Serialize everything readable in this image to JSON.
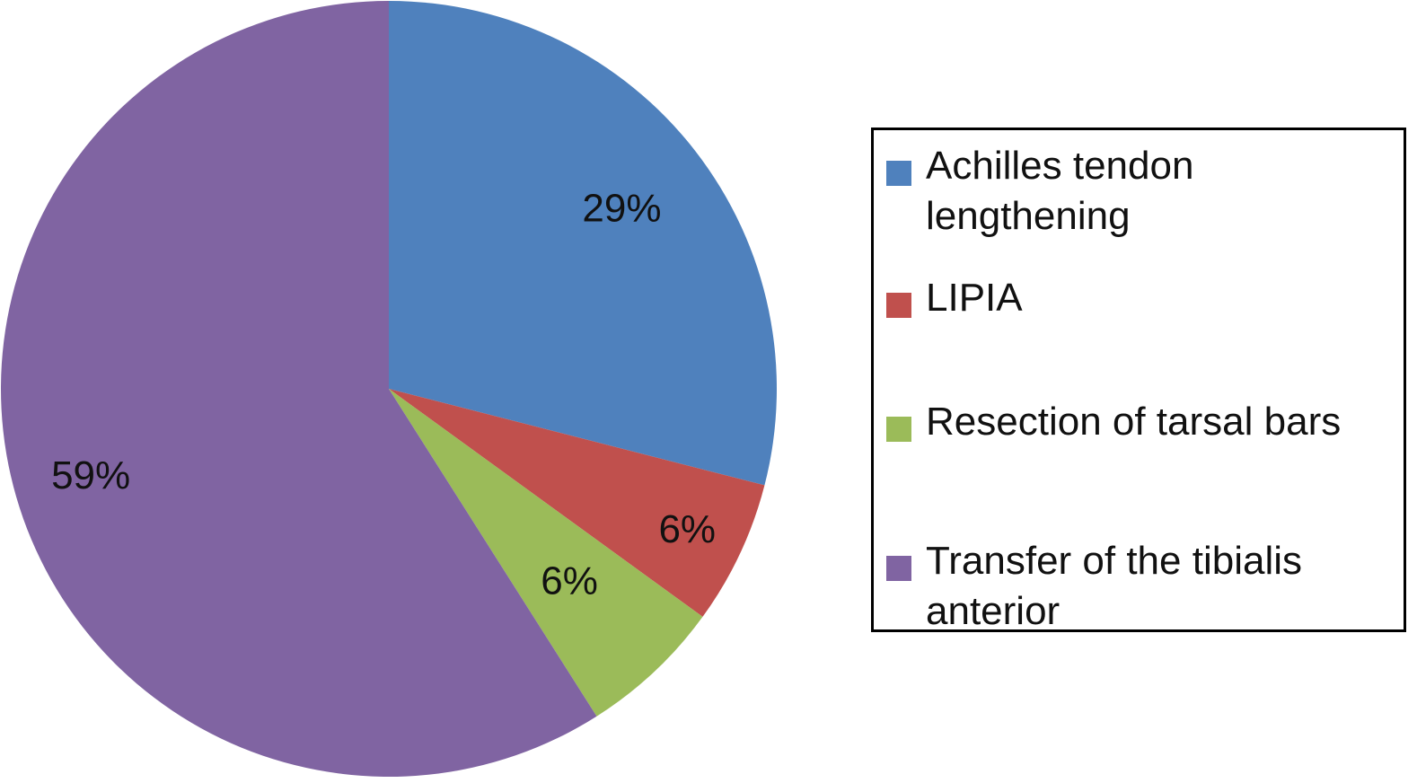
{
  "chart_data": {
    "type": "pie",
    "categories": [
      "Achilles tendon lengthening",
      "LIPIA",
      "Resection of tarsal bars",
      "Transfer of the tibialis anterior"
    ],
    "values": [
      29,
      6,
      6,
      59
    ],
    "value_labels": [
      "29%",
      "6%",
      "6%",
      "59%"
    ],
    "colors": [
      "#4f81bd",
      "#c0504d",
      "#9bbb59",
      "#8064a2"
    ],
    "start_angle": "12 o'clock",
    "direction": "clockwise",
    "legend_position": "right"
  },
  "legend": {
    "items": [
      {
        "label": "Achilles tendon lengthening",
        "color": "#4f81bd"
      },
      {
        "label": "LIPIA",
        "color": "#c0504d"
      },
      {
        "label": "Resection of tarsal bars",
        "color": "#9bbb59"
      },
      {
        "label": "Transfer of the tibialis anterior",
        "color": "#8064a2"
      }
    ]
  }
}
